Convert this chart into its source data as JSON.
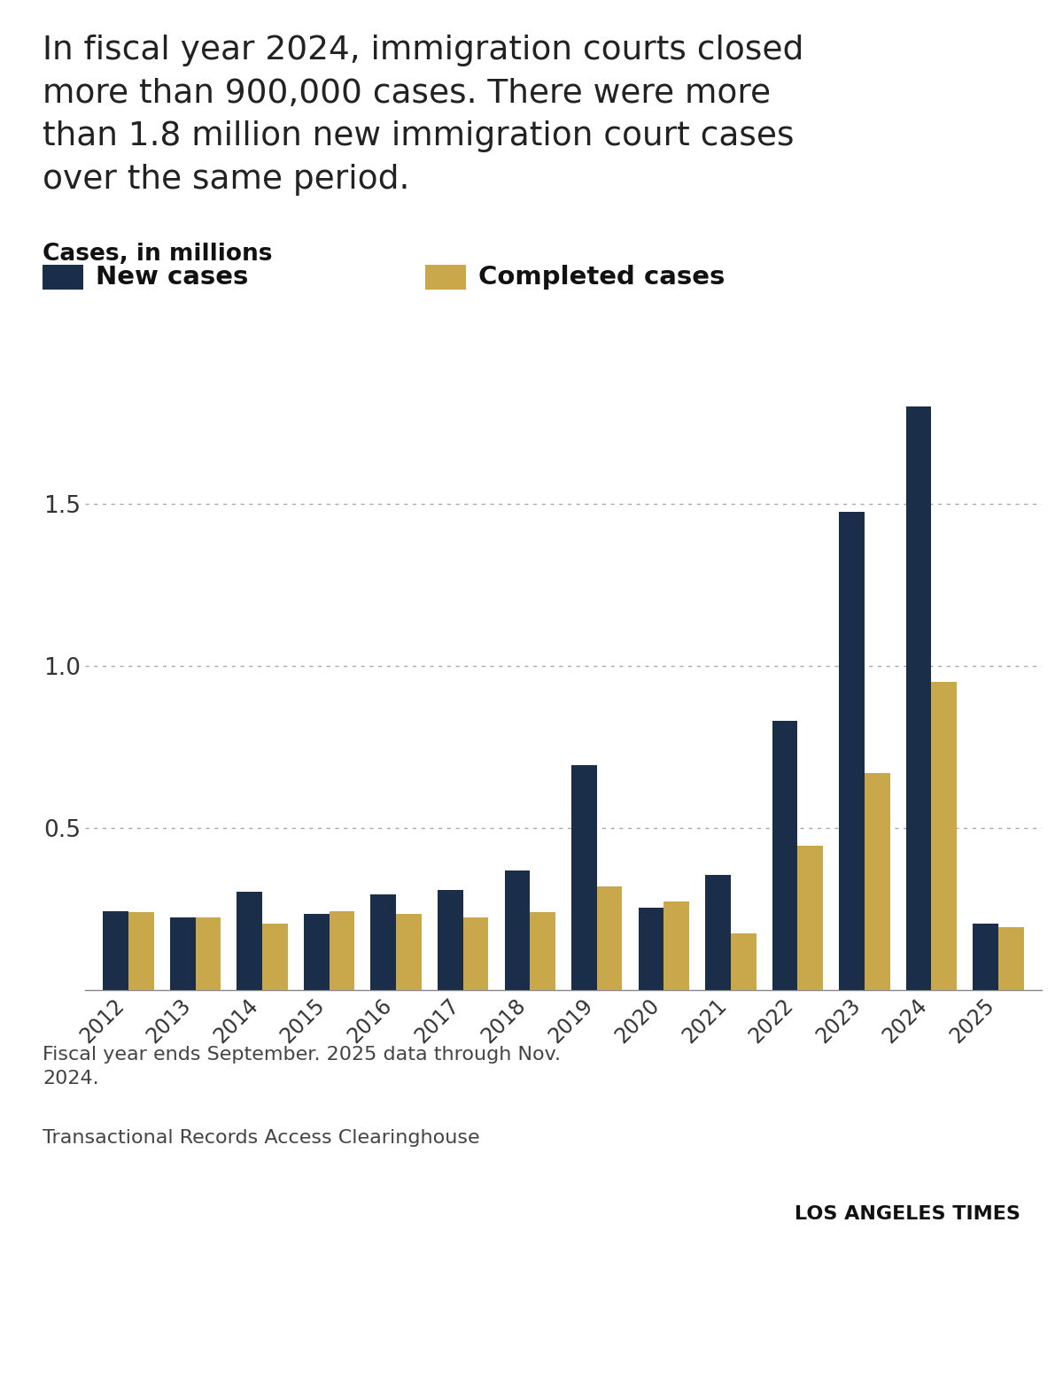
{
  "years": [
    2012,
    2013,
    2014,
    2015,
    2016,
    2017,
    2018,
    2019,
    2020,
    2021,
    2022,
    2023,
    2024,
    2025
  ],
  "new_cases": [
    0.245,
    0.225,
    0.305,
    0.235,
    0.295,
    0.31,
    0.37,
    0.695,
    0.255,
    0.355,
    0.83,
    1.475,
    1.8,
    0.205
  ],
  "completed_cases": [
    0.24,
    0.225,
    0.205,
    0.245,
    0.235,
    0.225,
    0.24,
    0.32,
    0.275,
    0.175,
    0.445,
    0.67,
    0.95,
    0.195
  ],
  "new_color": "#1a2e4a",
  "completed_color": "#c8a84b",
  "background_color": "#ffffff",
  "title_text": "In fiscal year 2024, immigration courts closed\nmore than 900,000 cases. There were more\nthan 1.8 million new immigration court cases\nover the same period.",
  "ylabel": "Cases, in millions",
  "legend_new": "New cases",
  "legend_completed": "Completed cases",
  "footnote1": "Fiscal year ends September. 2025 data through Nov.\n2024.",
  "footnote2": "Transactional Records Access Clearinghouse",
  "footnote3": "LOS ANGELES TIMES",
  "yticks": [
    0.5,
    1.0,
    1.5
  ],
  "ymax": 2.05
}
